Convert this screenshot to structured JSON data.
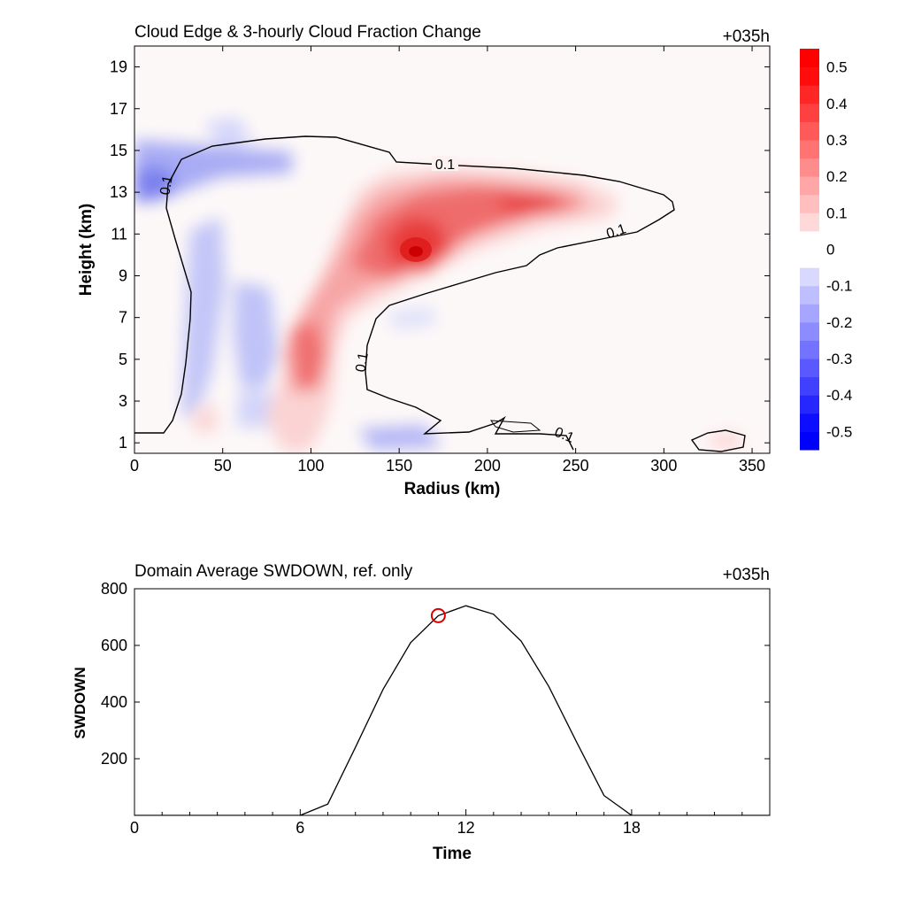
{
  "chart_data": [
    {
      "type": "heatmap",
      "title": "Cloud Edge & 3-hourly Cloud Fraction Change",
      "time_label": "+035h",
      "xlabel": "Radius (km)",
      "ylabel": "Height (km)",
      "xlim": [
        0,
        360
      ],
      "ylim": [
        0.5,
        20
      ],
      "xticks": [
        "0",
        "50",
        "100",
        "150",
        "200",
        "250",
        "300",
        "350"
      ],
      "yticks": [
        "1",
        "3",
        "5",
        "7",
        "9",
        "11",
        "13",
        "15",
        "17",
        "19"
      ],
      "colorbar": {
        "levels": [
          -0.55,
          -0.5,
          -0.45,
          -0.4,
          -0.35,
          -0.3,
          -0.25,
          -0.2,
          -0.15,
          -0.1,
          -0.05,
          0.05,
          0.1,
          0.15,
          0.2,
          0.25,
          0.3,
          0.35,
          0.4,
          0.45,
          0.5,
          0.55
        ],
        "labels": [
          "0.5",
          "0.4",
          "0.3",
          "0.2",
          "0.1",
          "0",
          "-0.1",
          "-0.2",
          "-0.3",
          "-0.4",
          "-0.5"
        ],
        "positive_color": "#ff0000",
        "negative_color": "#0000ff"
      },
      "contour": {
        "level": 0.1,
        "labels": [
          "0.1",
          "0.1",
          "0.1",
          "0.1",
          "0.1"
        ],
        "color": "#000000"
      },
      "features": [
        {
          "sign": "positive",
          "peak": 0.5,
          "center_radius": 162,
          "center_height": 10.2
        },
        {
          "sign": "positive",
          "peak": 0.4,
          "center_radius": 220,
          "center_height": 12.5
        },
        {
          "sign": "positive",
          "peak": 0.3,
          "center_radius": 95,
          "center_height": 5
        },
        {
          "sign": "negative",
          "peak": -0.3,
          "center_radius": 10,
          "center_height": 13.3
        },
        {
          "sign": "negative",
          "peak": -0.2,
          "center_radius": 68,
          "center_height": 6.5
        }
      ]
    },
    {
      "type": "line",
      "title": "Domain Average SWDOWN, ref. only",
      "time_label": "+035h",
      "xlabel": "Time",
      "ylabel": "SWDOWN",
      "xlim": [
        0,
        23
      ],
      "ylim": [
        0,
        800
      ],
      "xticks": [
        "0",
        "6",
        "12",
        "18"
      ],
      "yticks": [
        "200",
        "400",
        "600",
        "800"
      ],
      "x": [
        0,
        1,
        2,
        3,
        4,
        5,
        6,
        7,
        8,
        9,
        10,
        11,
        12,
        13,
        14,
        15,
        16,
        17,
        18,
        19,
        20,
        21,
        22,
        23
      ],
      "y": [
        0,
        0,
        0,
        0,
        0,
        0,
        0,
        40,
        240,
        445,
        610,
        705,
        740,
        710,
        615,
        455,
        260,
        70,
        0,
        0,
        0,
        0,
        0,
        0
      ],
      "marker": {
        "x": 11,
        "y": 705,
        "color": "#dd0000"
      }
    }
  ]
}
